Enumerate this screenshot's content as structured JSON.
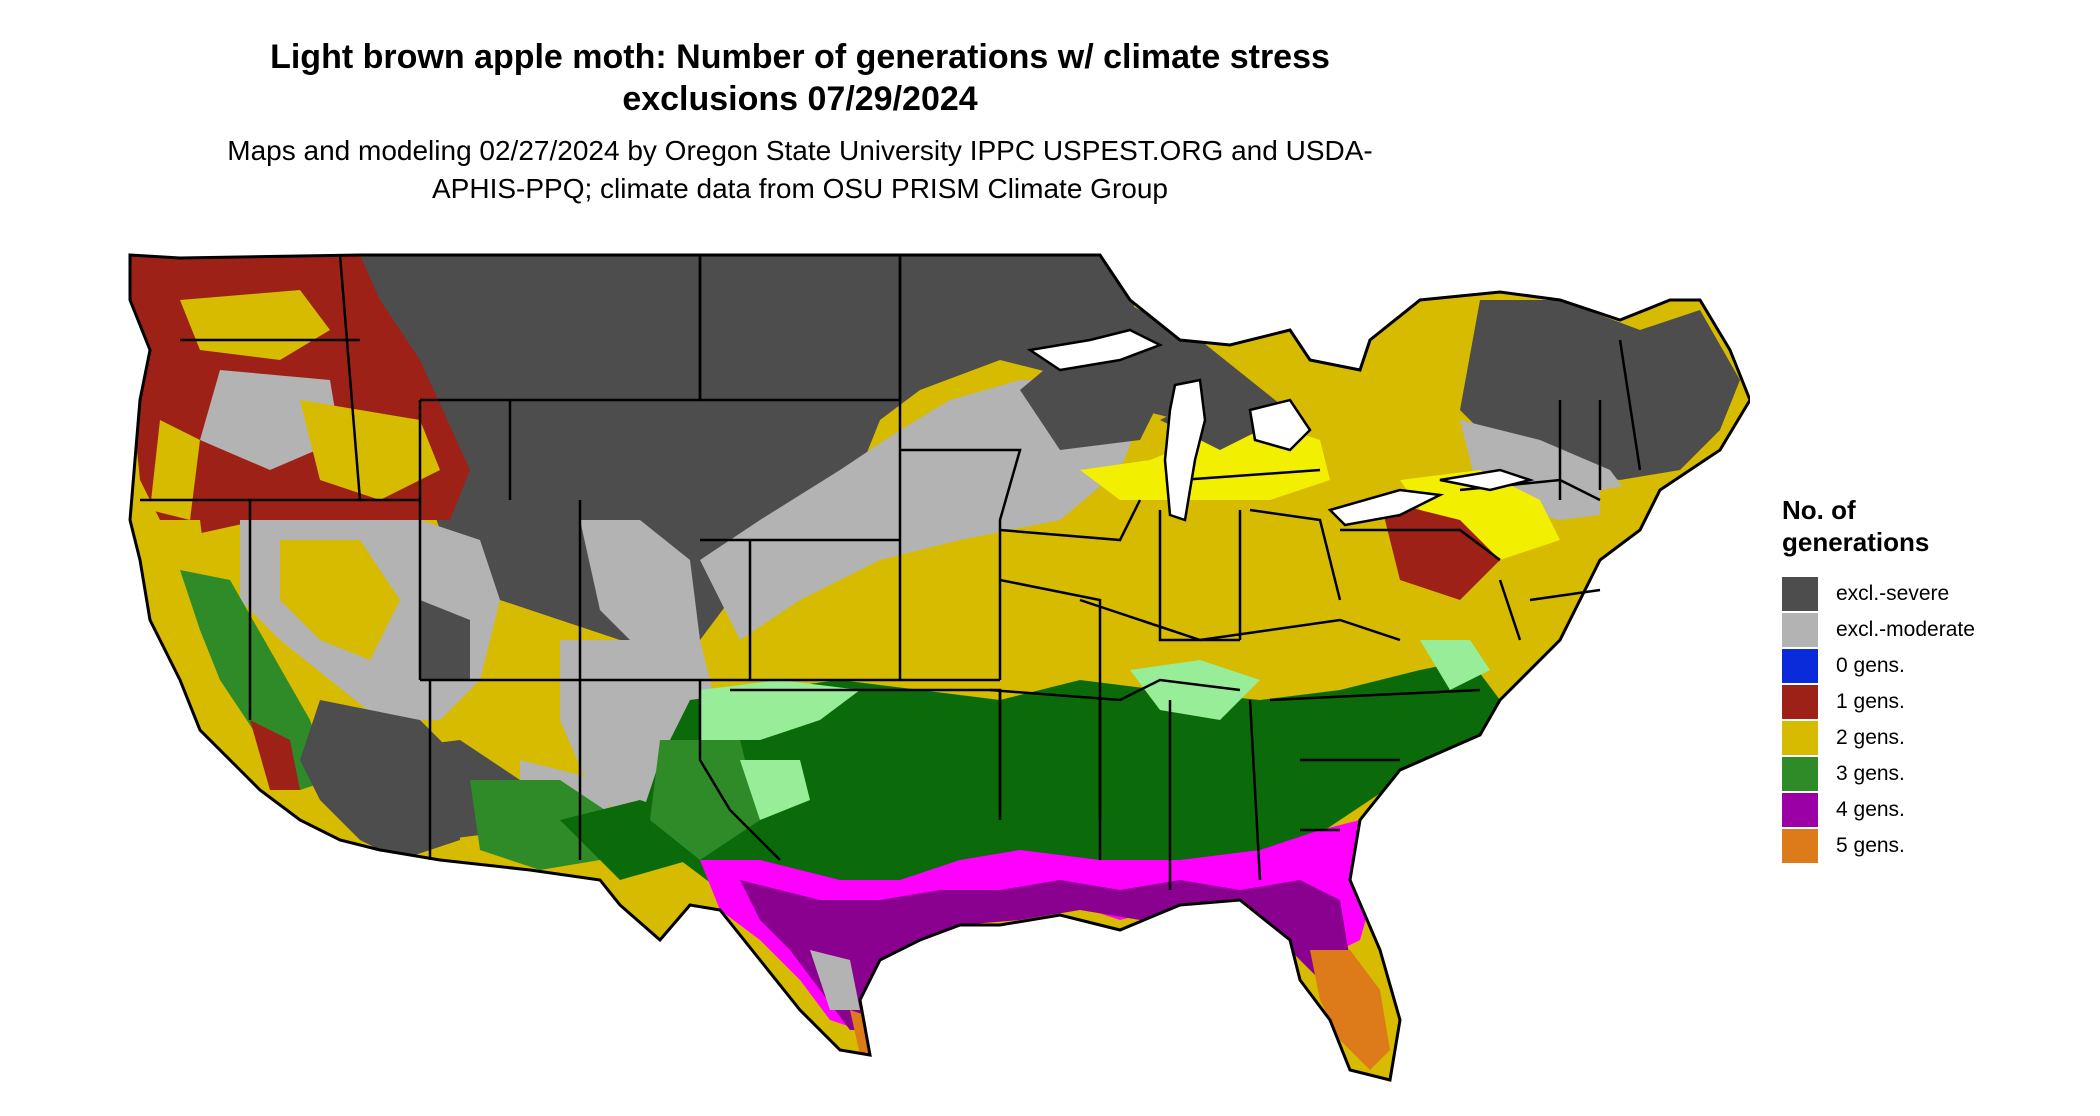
{
  "title": "Light brown apple moth: Number of generations w/ climate stress exclusions 07/29/2024",
  "subtitle": "Maps and modeling 02/27/2024 by Oregon State University IPPC USPEST.ORG and USDA-APHIS-PPQ; climate data from OSU PRISM Climate Group",
  "legend": {
    "title": "No. of generations",
    "items": [
      {
        "label": "excl.-severe",
        "color": "#4d4d4d"
      },
      {
        "label": "excl.-moderate",
        "color": "#b3b3b3"
      },
      {
        "label": "0 gens.",
        "color": "#0a2bd9"
      },
      {
        "label": "1 gens.",
        "color": "#9e2117"
      },
      {
        "label": "2 gens.",
        "color": "#d6bb00"
      },
      {
        "label": "3 gens.",
        "color": "#2e8b28"
      },
      {
        "label": "4 gens.",
        "color": "#9a00a6"
      },
      {
        "label": "5 gens.",
        "color": "#dd7a1a"
      }
    ]
  },
  "map_colors": {
    "severe": "#4d4d4d",
    "moderate": "#b3b3b3",
    "one": "#9e2117",
    "two": "#d6bb00",
    "yellow_bright": "#f2ef00",
    "three": "#2e8b28",
    "three_dark": "#0b6b0b",
    "three_light": "#98ee98",
    "four": "#8a008f",
    "four_bright": "#ff00ff",
    "five": "#dd7a1a",
    "border": "#000000"
  }
}
